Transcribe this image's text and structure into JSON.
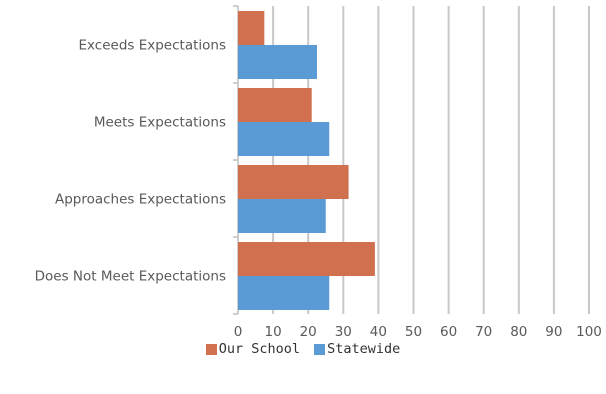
{
  "chart_data": {
    "type": "bar",
    "orientation": "horizontal",
    "categories": [
      "Exceeds Expectations",
      "Meets Expectations",
      "Approaches Expectations",
      "Does Not Meet Expectations"
    ],
    "series": [
      {
        "name": "Our School",
        "values": [
          7.5,
          21,
          31.5,
          39
        ],
        "color": "#D0704F"
      },
      {
        "name": "Statewide",
        "values": [
          22.5,
          26,
          25,
          26
        ],
        "color": "#5B9BD5"
      }
    ],
    "xlim": [
      0,
      100
    ],
    "xticks": [
      "0",
      "10",
      "20",
      "30",
      "40",
      "50",
      "60",
      "70",
      "80",
      "90",
      "100"
    ],
    "grid": true,
    "legend_position": "bottom",
    "title": "",
    "xlabel": "",
    "ylabel": ""
  },
  "colors": {
    "grid": "#C8C8C8",
    "axis": "#BFBFBF",
    "text": "#595959"
  }
}
